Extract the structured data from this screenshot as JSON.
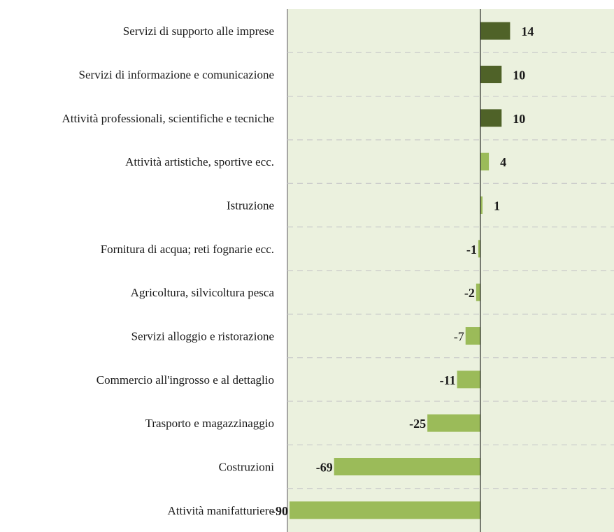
{
  "chart_data": {
    "type": "bar",
    "orientation": "horizontal",
    "categories": [
      "Servizi di supporto alle imprese",
      "Servizi di informazione e comunicazione",
      "Attività professionali, scientifiche e tecniche",
      "Attività artistiche, sportive ecc.",
      "Istruzione",
      "Fornitura di acqua; reti fognarie ecc.",
      "Agricoltura, silvicoltura pesca",
      "Servizi alloggio e ristorazione",
      "Commercio all'ingrosso e al dettaglio",
      "Trasporto e magazzinaggio",
      "Costruzioni",
      "Attività manifatturiere"
    ],
    "values": [
      14,
      10,
      10,
      4,
      1,
      -1,
      -2,
      -7,
      -11,
      -25,
      -69,
      -90
    ],
    "data_labels": [
      "14",
      "10",
      "10",
      "4",
      "1",
      "-1",
      "-2",
      "-7",
      "-11",
      "-25",
      "-69",
      "-90"
    ],
    "bold_labels": [
      true,
      true,
      true,
      true,
      true,
      true,
      true,
      false,
      true,
      true,
      true,
      true
    ],
    "bar_colors": [
      "#4f6228",
      "#4f6228",
      "#4f6228",
      "#9bbb59",
      "#9bbb59",
      "#9bbb59",
      "#9bbb59",
      "#9bbb59",
      "#9bbb59",
      "#9bbb59",
      "#9bbb59",
      "#9bbb59"
    ],
    "xlim": [
      -91,
      63
    ],
    "plot_background": "#ebf1de",
    "gridlines": "dashed horizontal",
    "title": "",
    "xlabel": "",
    "ylabel": ""
  }
}
